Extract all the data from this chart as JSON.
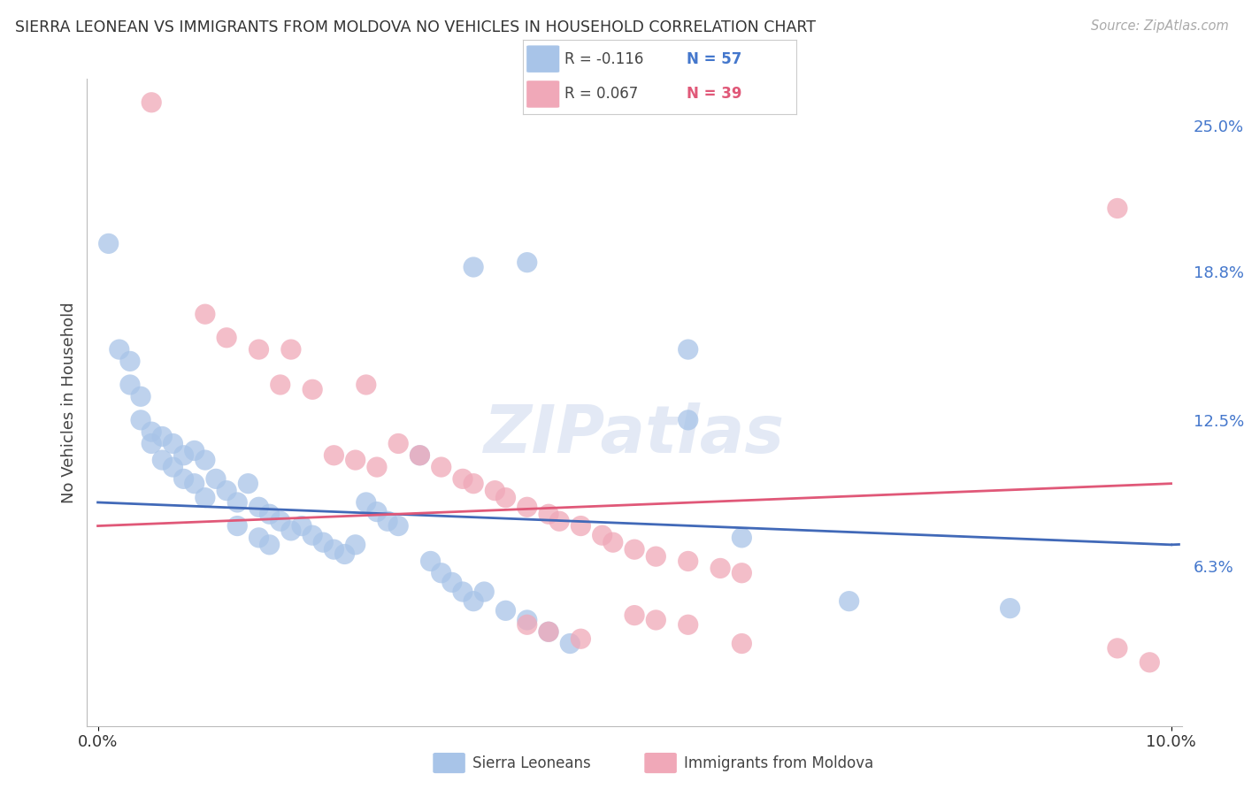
{
  "title": "SIERRA LEONEAN VS IMMIGRANTS FROM MOLDOVA NO VEHICLES IN HOUSEHOLD CORRELATION CHART",
  "source": "Source: ZipAtlas.com",
  "ylabel": "No Vehicles in Household",
  "right_yticks": [
    "25.0%",
    "18.8%",
    "12.5%",
    "6.3%"
  ],
  "right_ytick_values": [
    0.25,
    0.188,
    0.125,
    0.063
  ],
  "xlim_min": 0.0,
  "xlim_max": 0.1,
  "ylim_min": -0.005,
  "ylim_max": 0.27,
  "legend_R1": "R = -0.116",
  "legend_N1": "N = 57",
  "legend_R2": "R = 0.067",
  "legend_N2": "N = 39",
  "legend_label1": "Sierra Leoneans",
  "legend_label2": "Immigrants from Moldova",
  "blue_color": "#a8c4e8",
  "pink_color": "#f0a8b8",
  "blue_line_color": "#4169b8",
  "pink_line_color": "#e05878",
  "blue_R_color": "#444444",
  "blue_N_color": "#4477cc",
  "pink_R_color": "#444444",
  "pink_N_color": "#e05878",
  "watermark": "ZIPatlas",
  "background_color": "#ffffff",
  "grid_color": "#cccccc",
  "title_color": "#333333",
  "right_axis_color": "#4477cc",
  "blue_scatter_x": [
    0.001,
    0.002,
    0.003,
    0.003,
    0.004,
    0.004,
    0.005,
    0.005,
    0.006,
    0.006,
    0.007,
    0.007,
    0.008,
    0.008,
    0.009,
    0.009,
    0.01,
    0.01,
    0.011,
    0.012,
    0.013,
    0.013,
    0.014,
    0.015,
    0.015,
    0.016,
    0.016,
    0.017,
    0.018,
    0.019,
    0.02,
    0.021,
    0.022,
    0.023,
    0.024,
    0.025,
    0.026,
    0.027,
    0.028,
    0.03,
    0.031,
    0.032,
    0.033,
    0.034,
    0.035,
    0.036,
    0.038,
    0.04,
    0.042,
    0.044,
    0.035,
    0.04,
    0.055,
    0.055,
    0.06,
    0.07,
    0.085
  ],
  "blue_scatter_y": [
    0.2,
    0.155,
    0.15,
    0.14,
    0.135,
    0.125,
    0.12,
    0.115,
    0.118,
    0.108,
    0.115,
    0.105,
    0.11,
    0.1,
    0.112,
    0.098,
    0.108,
    0.092,
    0.1,
    0.095,
    0.09,
    0.08,
    0.098,
    0.088,
    0.075,
    0.085,
    0.072,
    0.082,
    0.078,
    0.08,
    0.076,
    0.073,
    0.07,
    0.068,
    0.072,
    0.09,
    0.086,
    0.082,
    0.08,
    0.11,
    0.065,
    0.06,
    0.056,
    0.052,
    0.048,
    0.052,
    0.044,
    0.04,
    0.035,
    0.03,
    0.19,
    0.192,
    0.155,
    0.125,
    0.075,
    0.048,
    0.045
  ],
  "pink_scatter_x": [
    0.005,
    0.01,
    0.012,
    0.015,
    0.017,
    0.018,
    0.02,
    0.022,
    0.024,
    0.025,
    0.026,
    0.028,
    0.03,
    0.032,
    0.034,
    0.035,
    0.037,
    0.038,
    0.04,
    0.042,
    0.043,
    0.045,
    0.047,
    0.048,
    0.05,
    0.052,
    0.055,
    0.058,
    0.06,
    0.04,
    0.042,
    0.045,
    0.05,
    0.052,
    0.055,
    0.06,
    0.095,
    0.095,
    0.098
  ],
  "pink_scatter_y": [
    0.26,
    0.17,
    0.16,
    0.155,
    0.14,
    0.155,
    0.138,
    0.11,
    0.108,
    0.14,
    0.105,
    0.115,
    0.11,
    0.105,
    0.1,
    0.098,
    0.095,
    0.092,
    0.088,
    0.085,
    0.082,
    0.08,
    0.076,
    0.073,
    0.07,
    0.067,
    0.065,
    0.062,
    0.06,
    0.038,
    0.035,
    0.032,
    0.042,
    0.04,
    0.038,
    0.03,
    0.215,
    0.028,
    0.022
  ]
}
